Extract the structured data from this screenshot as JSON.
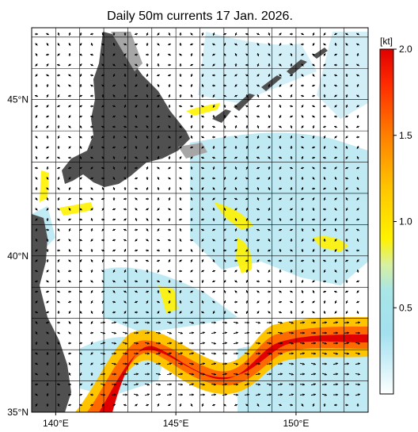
{
  "title": "Daily 50m currents 17 Jan. 2026.",
  "map": {
    "lon_range": [
      139,
      153
    ],
    "lat_range": [
      35,
      47.3
    ],
    "lon_ticks": [
      {
        "value": 140,
        "label": "140°E"
      },
      {
        "value": 145,
        "label": "145°E"
      },
      {
        "value": 150,
        "label": "150°E"
      }
    ],
    "lat_ticks": [
      {
        "value": 35,
        "label": "35°N"
      },
      {
        "value": 40,
        "label": "40°N"
      },
      {
        "value": 45,
        "label": "45°N"
      }
    ],
    "grid": true,
    "arrows": true,
    "land_color": "#505050",
    "shelf_color": "#a6a6a6",
    "ocean_color": "#ffffff"
  },
  "colorbar": {
    "unit": "[kt]",
    "range": [
      0,
      2.0
    ],
    "ticks": [
      {
        "value": 0.5,
        "label": "0.5"
      },
      {
        "value": 1.0,
        "label": "1.0"
      },
      {
        "value": 1.5,
        "label": "1.5"
      },
      {
        "value": 2.0,
        "label": "2.0"
      }
    ],
    "stops": [
      {
        "value": 0.0,
        "color": "#ffffff"
      },
      {
        "value": 0.2,
        "color": "#c8eef7"
      },
      {
        "value": 0.35,
        "color": "#a3e0f0"
      },
      {
        "value": 0.6,
        "color": "#a8e6e8"
      },
      {
        "value": 0.75,
        "color": "#d8f0a0"
      },
      {
        "value": 0.9,
        "color": "#fff200"
      },
      {
        "value": 1.2,
        "color": "#ffc400"
      },
      {
        "value": 1.5,
        "color": "#ff7f00"
      },
      {
        "value": 1.8,
        "color": "#ff2a00"
      },
      {
        "value": 2.0,
        "color": "#e00000"
      }
    ]
  }
}
